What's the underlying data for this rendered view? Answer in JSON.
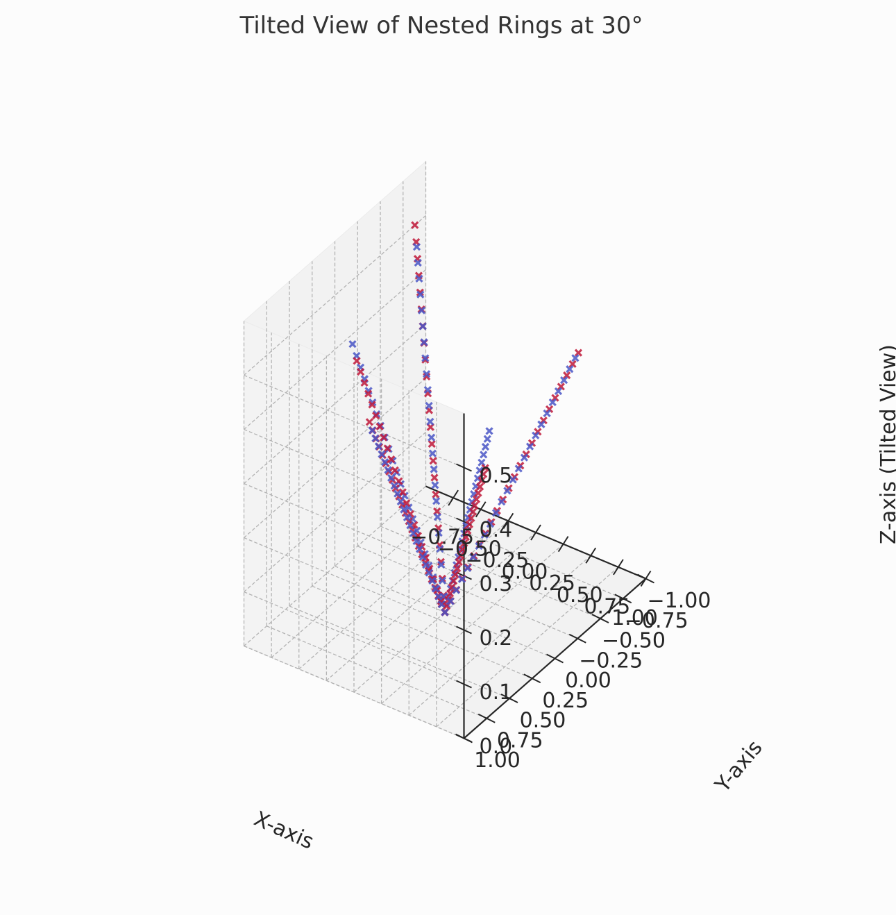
{
  "chart_data": {
    "type": "scatter",
    "title": "Tilted View of Nested Rings at 30°",
    "xlabel": "X-axis",
    "ylabel": "Y-axis",
    "zlabel": "Z-axis (Tilted View)",
    "xticks": [
      "−0.75",
      "−0.50",
      "−0.25",
      "0.00",
      "0.25",
      "0.50",
      "0.75",
      "1.00"
    ],
    "yticks": [
      "−1.00",
      "−0.75",
      "−0.50",
      "−0.25",
      "0.00",
      "0.25",
      "0.50",
      "0.75",
      "1.00"
    ],
    "zticks": [
      "0.0",
      "0.1",
      "0.2",
      "0.3",
      "0.4",
      "0.5"
    ],
    "xlim": [
      -1.0,
      1.0
    ],
    "ylim": [
      -1.0,
      1.0
    ],
    "zlim": [
      0.0,
      0.6
    ],
    "grid": true,
    "marker": "x",
    "colors": {
      "blue": "#4a56c6",
      "red": "#c0193a"
    },
    "series": [
      {
        "color": "#c0193a",
        "x": [
          0.0,
          -1.0
        ],
        "y": [
          0.0,
          -0.88
        ],
        "z": [
          0.0,
          0.5
        ]
      },
      {
        "color": "#4a56c6",
        "x": [
          0.0,
          -0.95
        ],
        "y": [
          0.0,
          -0.84
        ],
        "z": [
          0.0,
          0.47
        ]
      },
      {
        "color": "#4a56c6",
        "x": [
          0.0,
          -0.55
        ],
        "y": [
          0.0,
          0.35
        ],
        "z": [
          0.0,
          0.5
        ]
      },
      {
        "color": "#c0193a",
        "x": [
          0.0,
          -0.52
        ],
        "y": [
          0.0,
          0.34
        ],
        "z": [
          0.0,
          0.47
        ]
      },
      {
        "color": "#c0193a",
        "x": [
          0.0,
          0.1
        ],
        "y": [
          0.0,
          0.95
        ],
        "z": [
          0.0,
          0.5
        ]
      },
      {
        "color": "#4a56c6",
        "x": [
          0.0,
          0.1
        ],
        "y": [
          0.0,
          0.92
        ],
        "z": [
          0.0,
          0.48
        ]
      },
      {
        "color": "#4a56c6",
        "x": [
          0.0,
          0.9
        ],
        "y": [
          0.0,
          0.6
        ],
        "z": [
          0.0,
          0.5
        ]
      },
      {
        "color": "#c0193a",
        "x": [
          0.0,
          0.83
        ],
        "y": [
          0.0,
          0.56
        ],
        "z": [
          0.0,
          0.42
        ]
      },
      {
        "color": "#c0193a",
        "x": [
          0.0,
          0.9
        ],
        "y": [
          0.0,
          -0.38
        ],
        "z": [
          0.0,
          0.5
        ]
      },
      {
        "color": "#4a56c6",
        "x": [
          0.0,
          0.88
        ],
        "y": [
          0.0,
          -0.37
        ],
        "z": [
          0.0,
          0.49
        ]
      }
    ]
  }
}
